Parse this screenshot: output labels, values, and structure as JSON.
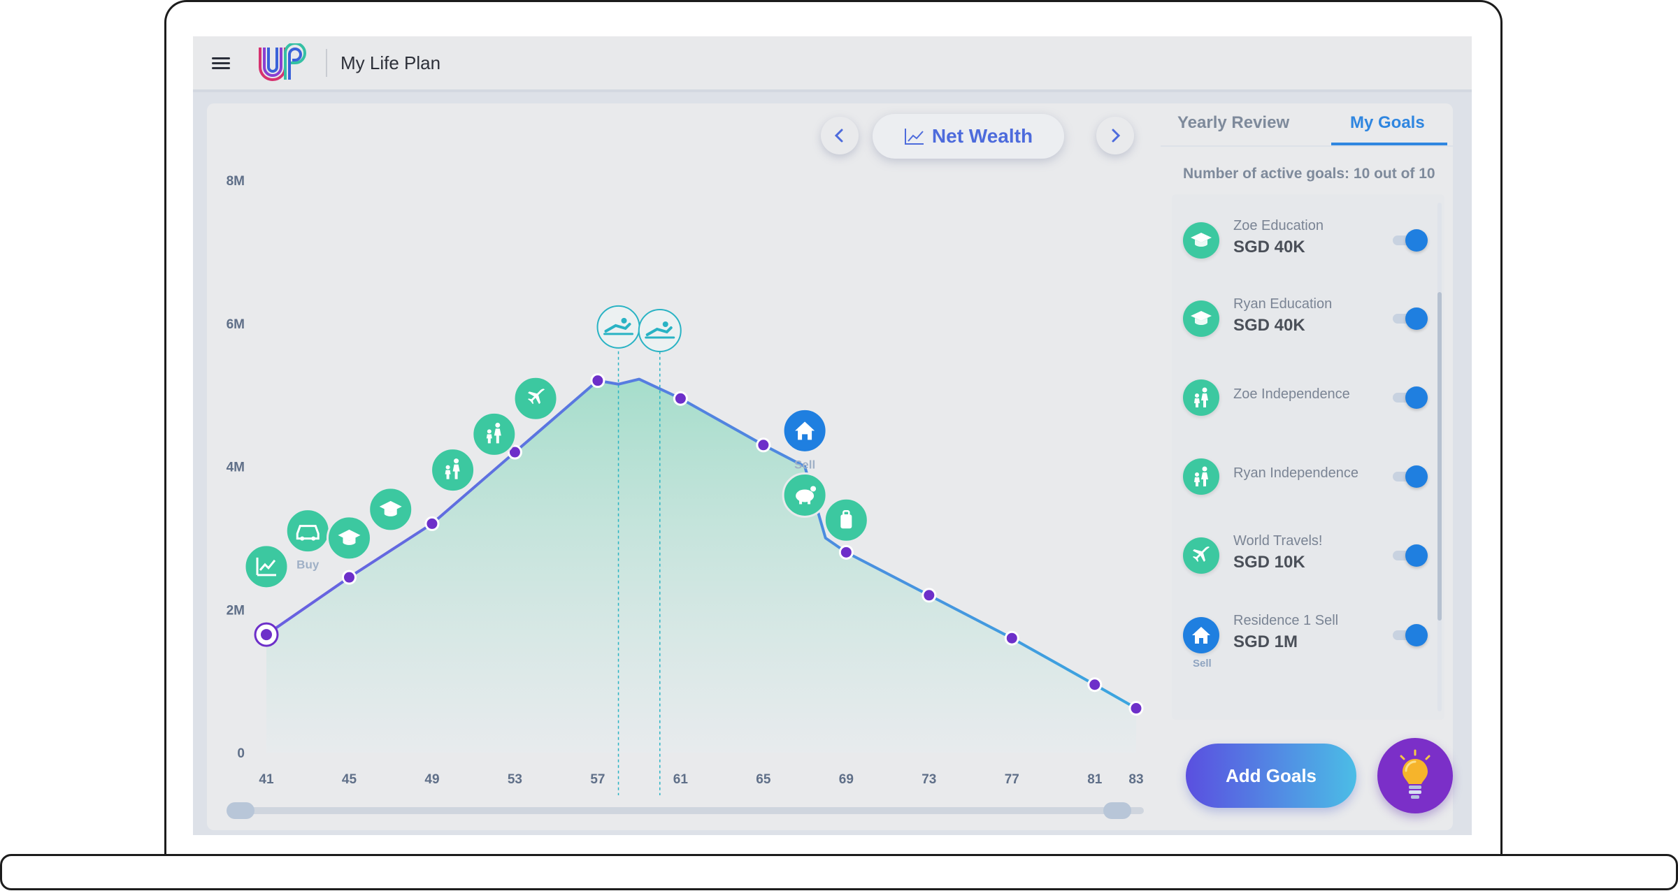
{
  "app": {
    "title": "My Life Plan"
  },
  "chart_nav": {
    "label": "Net Wealth",
    "prev_icon": "chevron-left-icon",
    "next_icon": "chevron-right-icon"
  },
  "tabs": [
    {
      "label": "Yearly Review",
      "active": false
    },
    {
      "label": "My Goals",
      "active": true
    }
  ],
  "goals_count_text": "Number of active goals: 10 out of 10",
  "goals": [
    {
      "name": "Zoe Education",
      "amount": "SGD 40K",
      "icon": "graduation-cap-icon",
      "enabled": true
    },
    {
      "name": "Ryan Education",
      "amount": "SGD 40K",
      "icon": "graduation-cap-icon",
      "enabled": true
    },
    {
      "name": "Zoe Independence",
      "amount": "",
      "icon": "family-icon",
      "enabled": true
    },
    {
      "name": "Ryan Independence",
      "amount": "",
      "icon": "family-icon",
      "enabled": true
    },
    {
      "name": "World Travels!",
      "amount": "SGD 10K",
      "icon": "airplane-icon",
      "enabled": true
    },
    {
      "name": "Residence 1 Sell",
      "amount": "SGD 1M",
      "icon": "house-icon",
      "sub_label": "Sell",
      "enabled": true
    }
  ],
  "buttons": {
    "add_goals": "Add Goals",
    "tips_icon": "lightbulb-icon"
  },
  "colors": {
    "accent_blue": "#2f86e0",
    "goal_green": "#3cc8a0",
    "line": "#5b6fe0",
    "purple": "#6d2fc9"
  },
  "chart_data": {
    "type": "area",
    "title": "",
    "xlabel": "",
    "ylabel": "",
    "x_ticks": [
      41,
      45,
      49,
      53,
      57,
      61,
      65,
      69,
      73,
      77,
      81,
      83
    ],
    "y_ticks": [
      0,
      2,
      4,
      6,
      8
    ],
    "y_tick_labels": [
      "0",
      "2M",
      "4M",
      "6M",
      "8M"
    ],
    "ylim": [
      0,
      8
    ],
    "xlim": [
      41,
      83
    ],
    "series": [
      {
        "values": [
          [
            41,
            1.65
          ],
          [
            45,
            2.45
          ],
          [
            49,
            3.2
          ],
          [
            53,
            4.2
          ],
          [
            57,
            5.2
          ],
          [
            58,
            5.15
          ],
          [
            59,
            5.22
          ],
          [
            61,
            4.95
          ],
          [
            65,
            4.3
          ],
          [
            67,
            4.0
          ],
          [
            67.5,
            3.5
          ],
          [
            68,
            3.0
          ],
          [
            69,
            2.8
          ],
          [
            73,
            2.2
          ],
          [
            77,
            1.6
          ],
          [
            81,
            0.95
          ],
          [
            83,
            0.62
          ]
        ],
        "markers": [
          [
            41,
            1.65
          ],
          [
            45,
            2.45
          ],
          [
            49,
            3.2
          ],
          [
            53,
            4.2
          ],
          [
            57,
            5.2
          ],
          [
            61,
            4.95
          ],
          [
            65,
            4.3
          ],
          [
            69,
            2.8
          ],
          [
            73,
            2.2
          ],
          [
            77,
            1.6
          ],
          [
            81,
            0.95
          ],
          [
            83,
            0.62
          ]
        ]
      }
    ],
    "retirement_markers": [
      58,
      60
    ],
    "goal_markers": [
      {
        "x": 41,
        "level": 2.6,
        "icon": "chart-growth-icon",
        "label": ""
      },
      {
        "x": 43,
        "level": 3.1,
        "icon": "car-icon",
        "label": "Buy"
      },
      {
        "x": 45,
        "level": 3.0,
        "icon": "graduation-cap-icon",
        "label": ""
      },
      {
        "x": 47,
        "level": 3.4,
        "icon": "graduation-cap-icon",
        "label": ""
      },
      {
        "x": 50,
        "level": 3.95,
        "icon": "family-icon",
        "label": ""
      },
      {
        "x": 52,
        "level": 4.45,
        "icon": "family-icon",
        "label": ""
      },
      {
        "x": 54,
        "level": 4.95,
        "icon": "airplane-icon",
        "label": ""
      },
      {
        "x": 67,
        "level": 4.5,
        "icon": "house-icon",
        "label": "Sell"
      },
      {
        "x": 67,
        "level": 3.6,
        "icon": "piggy-bank-icon",
        "label": ""
      },
      {
        "x": 69,
        "level": 3.25,
        "icon": "luggage-icon",
        "label": ""
      }
    ],
    "retirement_icons": [
      {
        "x": 58,
        "level": 5.95
      },
      {
        "x": 60,
        "level": 5.9
      }
    ],
    "legend": "none",
    "grid": false
  }
}
